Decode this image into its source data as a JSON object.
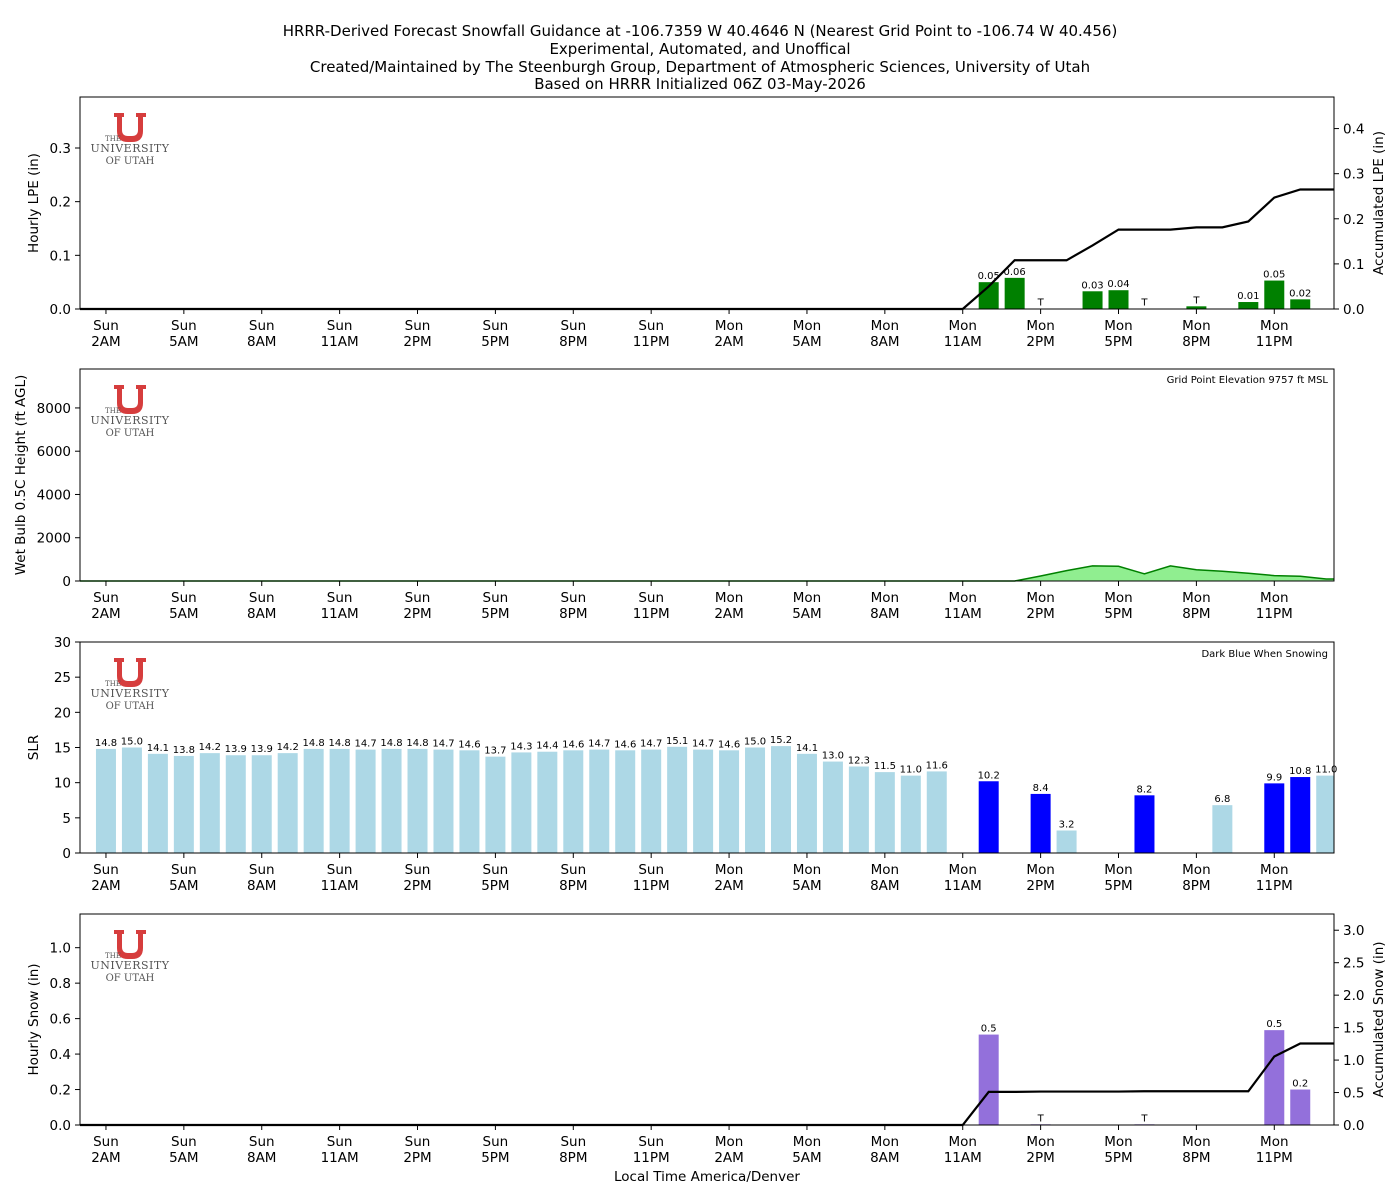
{
  "title_lines": [
    "HRRR-Derived Forecast Snowfall Guidance at -106.7359 W 40.4646 N (Nearest Grid Point to -106.74 W 40.456)",
    "Experimental, Automated, and Unoffical",
    "Created/Maintained by The Steenburgh Group, Department of Atmospheric Sciences, University of Utah",
    "Based on HRRR Initialized 06Z 03-May-2026"
  ],
  "xlabel": "Local Time America/Denver",
  "logo": {
    "top": "THE",
    "mid": "UNIVERSITY",
    "bottom": "OF UTAH",
    "color": "#d63d3d"
  },
  "chart_data": [
    {
      "type": "bar",
      "ylabel": "Hourly LPE (in)",
      "y2label": "Accumulated LPE (in)",
      "ylim": [
        0,
        0.395
      ],
      "yticks": [
        0.0,
        0.1,
        0.2,
        0.3
      ],
      "y2lim": [
        0,
        0.47
      ],
      "y2ticks": [
        0.0,
        0.1,
        0.2,
        0.3,
        0.4
      ],
      "bar_color": "#008000",
      "line_color": "#000000",
      "hours": [
        34,
        35,
        36,
        37,
        38,
        39,
        40,
        41,
        42,
        43,
        44,
        45,
        46
      ],
      "values": [
        0.05,
        0.058,
        0.0005,
        0,
        0.033,
        0.035,
        0.0005,
        0,
        0.005,
        0,
        0.013,
        0.053,
        0.018
      ],
      "labels": [
        "0.05",
        "0.06",
        "T",
        "",
        "0.03",
        "0.04",
        "T",
        "",
        "T",
        "",
        "0.01",
        "0.05",
        "0.02"
      ],
      "accum_x": [
        0,
        33,
        34,
        35,
        36,
        37,
        38,
        39,
        40,
        41,
        42,
        43,
        44,
        45,
        46,
        47
      ],
      "accum_y": [
        0,
        0,
        0.05,
        0.108,
        0.108,
        0.108,
        0.141,
        0.176,
        0.176,
        0.176,
        0.181,
        0.181,
        0.194,
        0.247,
        0.265,
        0.265
      ]
    },
    {
      "type": "area",
      "ylabel": "Wet Bulb 0.5C Height (ft AGL)",
      "annotation": "Grid Point Elevation 9757 ft MSL",
      "ylim": [
        0,
        9800
      ],
      "yticks": [
        0,
        2000,
        4000,
        6000,
        8000
      ],
      "fill_color": "#90ee90",
      "line_color": "#008000",
      "x": [
        0,
        34,
        35,
        36,
        37,
        38,
        39,
        40,
        41,
        42,
        43,
        44,
        45,
        46,
        47
      ],
      "y": [
        0,
        0,
        0,
        230,
        480,
        700,
        680,
        330,
        700,
        520,
        450,
        360,
        250,
        220,
        90
      ]
    },
    {
      "type": "bar",
      "ylabel": "SLR",
      "annotation": "Dark Blue When Snowing",
      "ylim": [
        0,
        30
      ],
      "yticks": [
        0,
        5,
        10,
        15,
        20,
        25,
        30
      ],
      "light_color": "#add8e6",
      "snow_color": "#0000ff",
      "bars": [
        {
          "h": 0,
          "v": 14.8,
          "snow": false
        },
        {
          "h": 1,
          "v": 15.0,
          "snow": false
        },
        {
          "h": 2,
          "v": 14.1,
          "snow": false
        },
        {
          "h": 3,
          "v": 13.8,
          "snow": false
        },
        {
          "h": 4,
          "v": 14.2,
          "snow": false
        },
        {
          "h": 5,
          "v": 13.9,
          "snow": false
        },
        {
          "h": 6,
          "v": 13.9,
          "snow": false
        },
        {
          "h": 7,
          "v": 14.2,
          "snow": false
        },
        {
          "h": 8,
          "v": 14.8,
          "snow": false
        },
        {
          "h": 9,
          "v": 14.8,
          "snow": false
        },
        {
          "h": 10,
          "v": 14.7,
          "snow": false
        },
        {
          "h": 11,
          "v": 14.8,
          "snow": false
        },
        {
          "h": 12,
          "v": 14.8,
          "snow": false
        },
        {
          "h": 13,
          "v": 14.7,
          "snow": false
        },
        {
          "h": 14,
          "v": 14.6,
          "snow": false
        },
        {
          "h": 15,
          "v": 13.7,
          "snow": false
        },
        {
          "h": 16,
          "v": 14.3,
          "snow": false
        },
        {
          "h": 17,
          "v": 14.4,
          "snow": false
        },
        {
          "h": 18,
          "v": 14.6,
          "snow": false
        },
        {
          "h": 19,
          "v": 14.7,
          "snow": false
        },
        {
          "h": 20,
          "v": 14.6,
          "snow": false
        },
        {
          "h": 21,
          "v": 14.7,
          "snow": false
        },
        {
          "h": 22,
          "v": 15.1,
          "snow": false
        },
        {
          "h": 23,
          "v": 14.7,
          "snow": false
        },
        {
          "h": 24,
          "v": 14.6,
          "snow": false
        },
        {
          "h": 25,
          "v": 15.0,
          "snow": false
        },
        {
          "h": 26,
          "v": 15.2,
          "snow": false
        },
        {
          "h": 27,
          "v": 14.1,
          "snow": false
        },
        {
          "h": 28,
          "v": 13.0,
          "snow": false
        },
        {
          "h": 29,
          "v": 12.3,
          "snow": false
        },
        {
          "h": 30,
          "v": 11.5,
          "snow": false
        },
        {
          "h": 31,
          "v": 11.0,
          "snow": false
        },
        {
          "h": 32,
          "v": 11.6,
          "snow": false
        },
        {
          "h": 34,
          "v": 10.2,
          "snow": true
        },
        {
          "h": 36,
          "v": 8.4,
          "snow": true
        },
        {
          "h": 37,
          "v": 3.2,
          "snow": false
        },
        {
          "h": 40,
          "v": 8.2,
          "snow": true
        },
        {
          "h": 43,
          "v": 6.8,
          "snow": false
        },
        {
          "h": 45,
          "v": 9.9,
          "snow": true
        },
        {
          "h": 46,
          "v": 10.8,
          "snow": true
        },
        {
          "h": 47,
          "v": 11.0,
          "snow": false
        }
      ]
    },
    {
      "type": "bar",
      "ylabel": "Hourly Snow (in)",
      "y2label": "Accumulated Snow (in)",
      "ylim": [
        0,
        1.19
      ],
      "yticks": [
        0.0,
        0.2,
        0.4,
        0.6,
        0.8,
        1.0
      ],
      "y2lim": [
        0,
        3.25
      ],
      "y2ticks": [
        0.0,
        0.5,
        1.0,
        1.5,
        2.0,
        2.5,
        3.0
      ],
      "bar_color": "#9370db",
      "line_color": "#000000",
      "hours": [
        34,
        36,
        40,
        45,
        46
      ],
      "values": [
        0.51,
        0.004,
        0.004,
        0.535,
        0.2
      ],
      "labels": [
        "0.5",
        "T",
        "T",
        "0.5",
        "0.2"
      ],
      "accum_x": [
        0,
        33,
        34,
        35,
        36,
        37,
        38,
        39,
        40,
        41,
        42,
        43,
        44,
        45,
        46,
        47
      ],
      "accum_y": [
        0,
        0,
        0.51,
        0.51,
        0.515,
        0.515,
        0.515,
        0.515,
        0.52,
        0.52,
        0.52,
        0.52,
        0.52,
        1.055,
        1.255,
        1.255
      ]
    }
  ],
  "xaxis": {
    "tick_hours": [
      0,
      3,
      6,
      9,
      12,
      15,
      18,
      21,
      24,
      27,
      30,
      33,
      36,
      39,
      42,
      45
    ],
    "tick_days": [
      "Sun",
      "Sun",
      "Sun",
      "Sun",
      "Sun",
      "Sun",
      "Sun",
      "Sun",
      "Mon",
      "Mon",
      "Mon",
      "Mon",
      "Mon",
      "Mon",
      "Mon",
      "Mon"
    ],
    "tick_times": [
      "2AM",
      "5AM",
      "8AM",
      "11AM",
      "2PM",
      "5PM",
      "8PM",
      "11PM",
      "2AM",
      "5AM",
      "8AM",
      "11AM",
      "2PM",
      "5PM",
      "8PM",
      "11PM"
    ]
  }
}
